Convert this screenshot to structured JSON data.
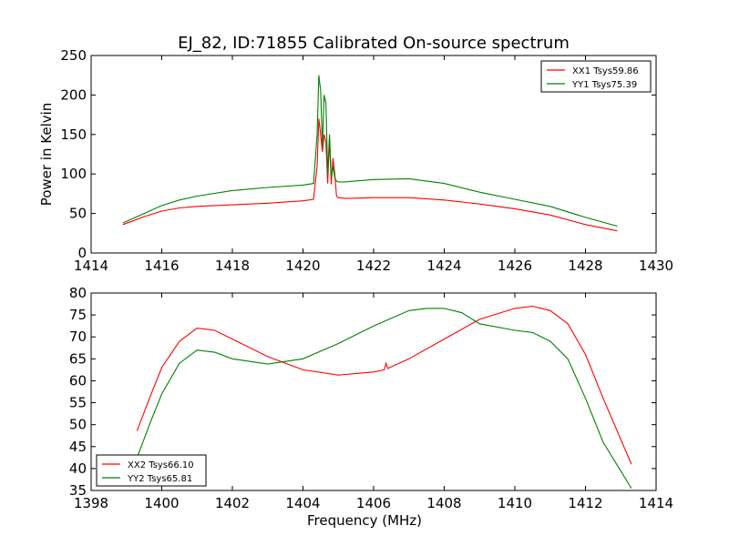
{
  "title": "EJ_82, ID:71855 Calibrated On-source spectrum",
  "chart_data": [
    {
      "type": "line",
      "ylabel": "Power in Kelvin",
      "xlabel": "",
      "xlim": [
        1414,
        1430
      ],
      "ylim": [
        0,
        250
      ],
      "xticks": [
        "1414",
        "1416",
        "1418",
        "1420",
        "1422",
        "1424",
        "1426",
        "1428",
        "1430"
      ],
      "yticks": [
        "0",
        "50",
        "100",
        "150",
        "200",
        "250"
      ],
      "legend_position": "top-right",
      "grid": false,
      "series": [
        {
          "name": "XX1 Tsys59.86",
          "color": "#ff0000",
          "x": [
            1414.9,
            1415.5,
            1416.0,
            1416.5,
            1417.0,
            1418.0,
            1419.0,
            1420.0,
            1420.3,
            1420.4,
            1420.45,
            1420.5,
            1420.55,
            1420.6,
            1420.65,
            1420.7,
            1420.75,
            1420.8,
            1420.85,
            1420.9,
            1420.95,
            1421.0,
            1421.2,
            1422.0,
            1423.0,
            1424.0,
            1425.0,
            1426.0,
            1427.0,
            1428.0,
            1428.9
          ],
          "y": [
            36,
            46,
            53,
            57,
            59,
            61,
            63,
            66,
            68,
            110,
            170,
            150,
            128,
            150,
            140,
            88,
            145,
            87,
            120,
            100,
            72,
            70,
            69,
            70,
            70,
            67,
            62,
            56,
            48,
            36,
            28
          ]
        },
        {
          "name": "YY1 Tsys75.39",
          "color": "#008000",
          "x": [
            1414.9,
            1415.5,
            1416.0,
            1416.5,
            1417.0,
            1418.0,
            1419.0,
            1420.0,
            1420.3,
            1420.4,
            1420.45,
            1420.5,
            1420.55,
            1420.6,
            1420.65,
            1420.7,
            1420.75,
            1420.8,
            1420.85,
            1420.9,
            1420.95,
            1421.0,
            1421.2,
            1422.0,
            1423.0,
            1424.0,
            1425.0,
            1426.0,
            1427.0,
            1428.0,
            1428.9
          ],
          "y": [
            38,
            50,
            60,
            67,
            72,
            79,
            83,
            86,
            88,
            150,
            225,
            205,
            135,
            200,
            190,
            100,
            150,
            95,
            110,
            95,
            91,
            90,
            90,
            93,
            94,
            88,
            77,
            68,
            59,
            45,
            34
          ]
        }
      ]
    },
    {
      "type": "line",
      "ylabel": "",
      "xlabel": "Frequency (MHz)",
      "xlim": [
        1398,
        1414
      ],
      "ylim": [
        35,
        80
      ],
      "xticks": [
        "1398",
        "1400",
        "1402",
        "1404",
        "1406",
        "1408",
        "1410",
        "1412",
        "1414"
      ],
      "yticks": [
        "35",
        "40",
        "45",
        "50",
        "55",
        "60",
        "65",
        "70",
        "75",
        "80"
      ],
      "legend_position": "bottom-left",
      "grid": false,
      "series": [
        {
          "name": "XX2 Tsys66.10",
          "color": "#ff0000",
          "x": [
            1399.3,
            1399.7,
            1400.0,
            1400.5,
            1401.0,
            1401.5,
            1402.0,
            1403.0,
            1404.0,
            1405.0,
            1406.0,
            1406.3,
            1406.35,
            1406.4,
            1407.0,
            1408.0,
            1409.0,
            1410.0,
            1410.5,
            1411.0,
            1411.5,
            1412.0,
            1412.5,
            1413.3
          ],
          "y": [
            48.6,
            57,
            63,
            69,
            72,
            71.5,
            69.5,
            65.5,
            62.5,
            61.3,
            62,
            62.5,
            64,
            62.8,
            65,
            69.5,
            74,
            76.5,
            77,
            76,
            73,
            66,
            56,
            41
          ]
        },
        {
          "name": "YY2 Tsys65.81",
          "color": "#008000",
          "x": [
            1399.3,
            1399.7,
            1400.0,
            1400.5,
            1401.0,
            1401.5,
            1402.0,
            1403.0,
            1404.0,
            1405.0,
            1406.0,
            1407.0,
            1407.5,
            1408.0,
            1408.5,
            1409.0,
            1410.0,
            1410.5,
            1411.0,
            1411.5,
            1412.0,
            1412.5,
            1413.3
          ],
          "y": [
            42.5,
            51,
            57,
            64,
            67,
            66.5,
            65,
            63.8,
            65,
            68.5,
            72.5,
            76,
            76.5,
            76.5,
            75.5,
            73,
            71.5,
            71,
            69,
            65,
            56,
            46,
            35.5
          ]
        }
      ]
    }
  ]
}
